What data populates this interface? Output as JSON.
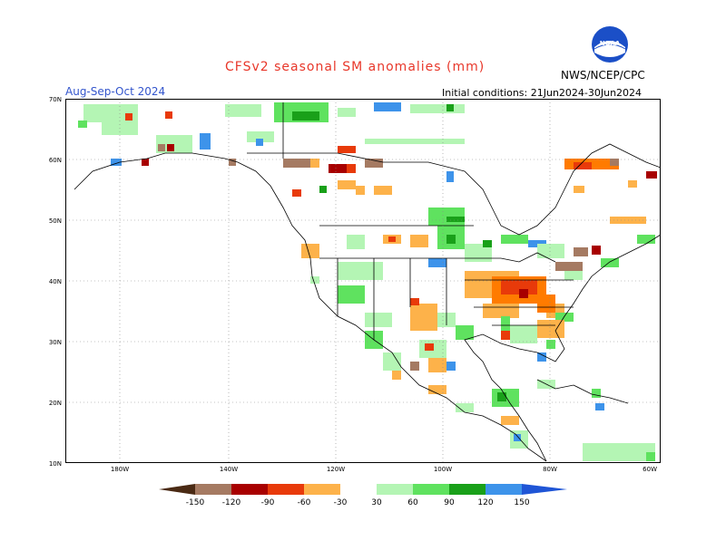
{
  "title": "CFSv2 seasonal SM anomalies (mm)",
  "period": "Aug-Sep-Oct 2024",
  "initial_conditions": "Initial conditions: 21Jun2024-30Jun2024",
  "agency": "NWS/NCEP/CPC",
  "logo_text": "NOAA",
  "map": {
    "lon_min": -190,
    "lon_max": -80,
    "lat_min": 10,
    "lat_max": 70,
    "lat_labels": [
      "70N",
      "60N",
      "50N",
      "40N",
      "30N",
      "20N",
      "10N"
    ],
    "lon_labels": [
      "180W",
      "140W",
      "120W",
      "100W",
      "80W",
      "60W"
    ],
    "gridlines": "dotted"
  },
  "legend": {
    "labels": [
      "-150",
      "-120",
      "-90",
      "-60",
      "-30",
      "30",
      "60",
      "90",
      "120",
      "150"
    ],
    "colors": {
      "below_-150": "#4a2a14",
      "-150_-120": "#a57a62",
      "-120_-90": "#a80000",
      "-90_-60": "#e83a0a",
      "-60_-30": "#ff7b00",
      "-30_-30": "#fdb24a",
      "neutral": "#ffffff",
      "30_60": "#b4f5b4",
      "60_90": "#5fe25f",
      "90_120": "#19a019",
      "120_150": "#3d93ea",
      "above_150": "#1f55d6"
    }
  }
}
